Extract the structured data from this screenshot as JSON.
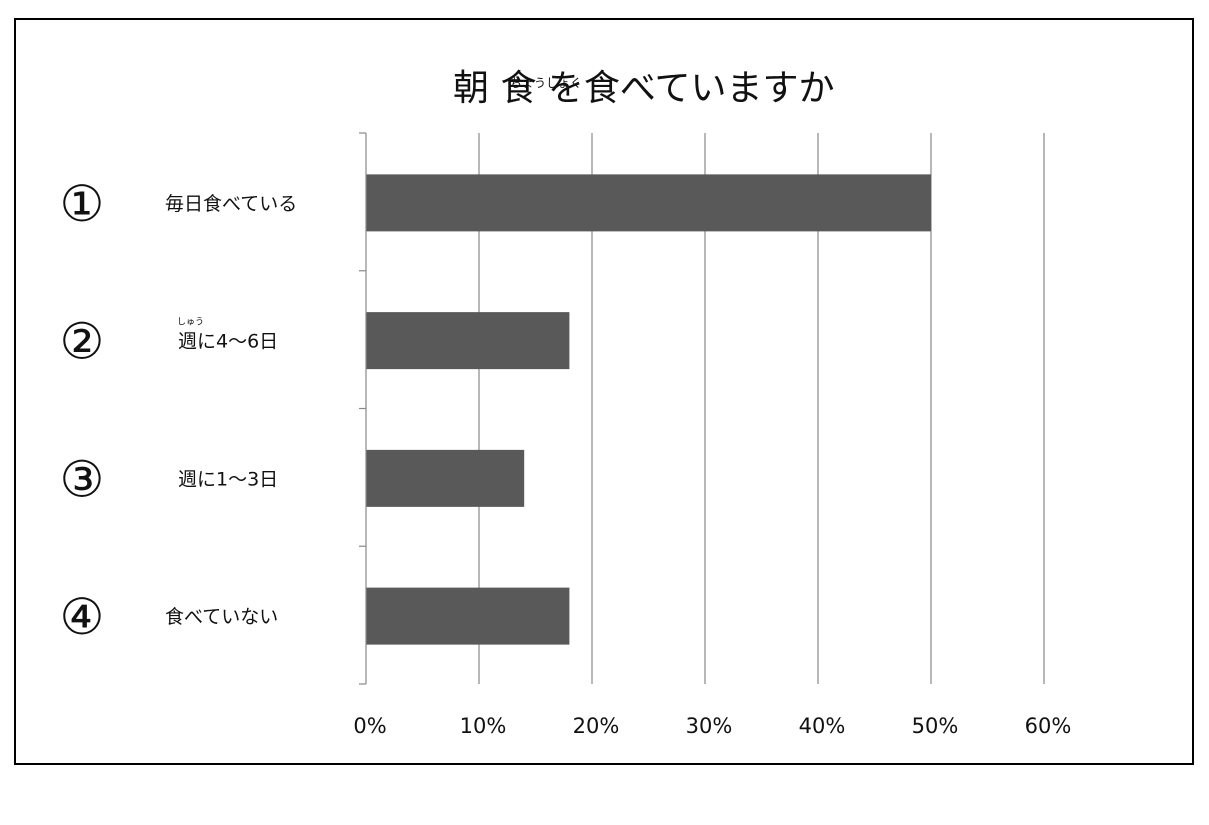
{
  "chart_data": {
    "type": "bar",
    "orientation": "horizontal",
    "title": "朝 食 を食べていますか",
    "title_ruby": "ちょうしょく",
    "categories": [
      "毎日食べている",
      "週に4～6日",
      "週に1～3日",
      "食べていない"
    ],
    "category_numbers": [
      "①",
      "②",
      "③",
      "④"
    ],
    "category_ruby": [
      "",
      "しゅう",
      "",
      ""
    ],
    "values": [
      50,
      18,
      14,
      18
    ],
    "value_unit": "%",
    "xlim": [
      0,
      60
    ],
    "ticks": [
      "0%",
      "10%",
      "20%",
      "30%",
      "40%",
      "50%",
      "60%"
    ],
    "grid": true,
    "legend": "none",
    "bar_color": "#595959",
    "grid_color": "#888888"
  }
}
